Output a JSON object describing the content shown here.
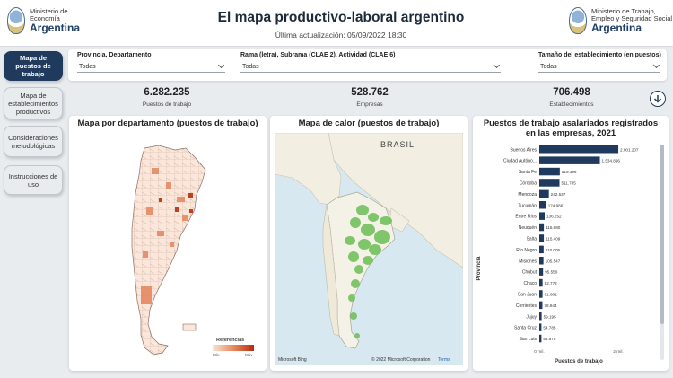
{
  "header": {
    "title": "El mapa productivo-laboral argentino",
    "subtitle": "Última actualización: 05/09/2022 18:30",
    "logo_left": {
      "line1": "Ministerio de",
      "line2": "Economía",
      "name": "Argentina"
    },
    "logo_right": {
      "line1": "Ministerio de Trabajo,",
      "line2": "Empleo y Seguridad Social",
      "name": "Argentina"
    }
  },
  "nav": [
    {
      "label": "Mapa de puestos de trabajo",
      "active": true
    },
    {
      "label": "Mapa de establecimientos productivos",
      "active": false
    },
    {
      "label": "Consideraciones metodológicas",
      "active": false
    },
    {
      "label": "Instrucciones de uso",
      "active": false
    }
  ],
  "filters": [
    {
      "label": "Provincia, Departamento",
      "value": "Todas"
    },
    {
      "label": "Rama (letra), Subrama (CLAE 2), Actividad (CLAE 6)",
      "value": "Todas"
    },
    {
      "label": "Tamaño del establecimiento (en puestos)",
      "value": "Todas"
    }
  ],
  "kpis": [
    {
      "value": "6.282.235",
      "label": "Puestos de trabajo"
    },
    {
      "value": "528.762",
      "label": "Empresas"
    },
    {
      "value": "706.498",
      "label": "Establecimientos"
    }
  ],
  "map_panel": {
    "title": "Mapa por departamento (puestos de trabajo)",
    "legend_title": "Referencias",
    "legend_min": "Mín.",
    "legend_max": "Máx."
  },
  "heat_panel": {
    "title": "Mapa de calor (puestos de trabajo)",
    "country_label": "BRASIL",
    "credit_left": "Microsoft Bing",
    "credit_right": "© 2022 Microsoft Corporation",
    "terms": "Terms"
  },
  "colors": {
    "accent": "#1f3a5c",
    "bar": "#1f3a5c",
    "heat": "#6fbf5a"
  },
  "chart_data": {
    "type": "bar",
    "orientation": "horizontal",
    "title": "Puestos de trabajo asalariados registrados en las empresas, 2021",
    "xlabel": "Puestos de trabajo",
    "ylabel": "Provincia",
    "xlim": [
      0,
      2000000
    ],
    "xticks": [
      {
        "value": 0,
        "label": "0 mil."
      },
      {
        "value": 2000000,
        "label": "2 mil."
      }
    ],
    "categories": [
      "Buenos Aires",
      "Ciudad Autóno...",
      "Santa Fe",
      "Córdoba",
      "Mendoza",
      "Tucumán",
      "Entre Ríos",
      "Neuquén",
      "Salta",
      "Río Negro",
      "Misiones",
      "Chubut",
      "Chaco",
      "San Juan",
      "Corrientes",
      "Jujuy",
      "Santa Cruz",
      "San Luis"
    ],
    "values": [
      2001207,
      1534896,
      519396,
      511735,
      242537,
      174986,
      136252,
      115680,
      115409,
      110005,
      105547,
      95550,
      82772,
      81661,
      78644,
      59195,
      54785,
      54575
    ],
    "value_labels": [
      "2.001.207",
      "1.534.896",
      "519.396",
      "511.735",
      "242.537",
      "174.986",
      "136.252",
      "115.680",
      "115.409",
      "110.005",
      "105.547",
      "95.550",
      "82.772",
      "81.661",
      "78.644",
      "59.195",
      "54.785",
      "54.575"
    ]
  }
}
